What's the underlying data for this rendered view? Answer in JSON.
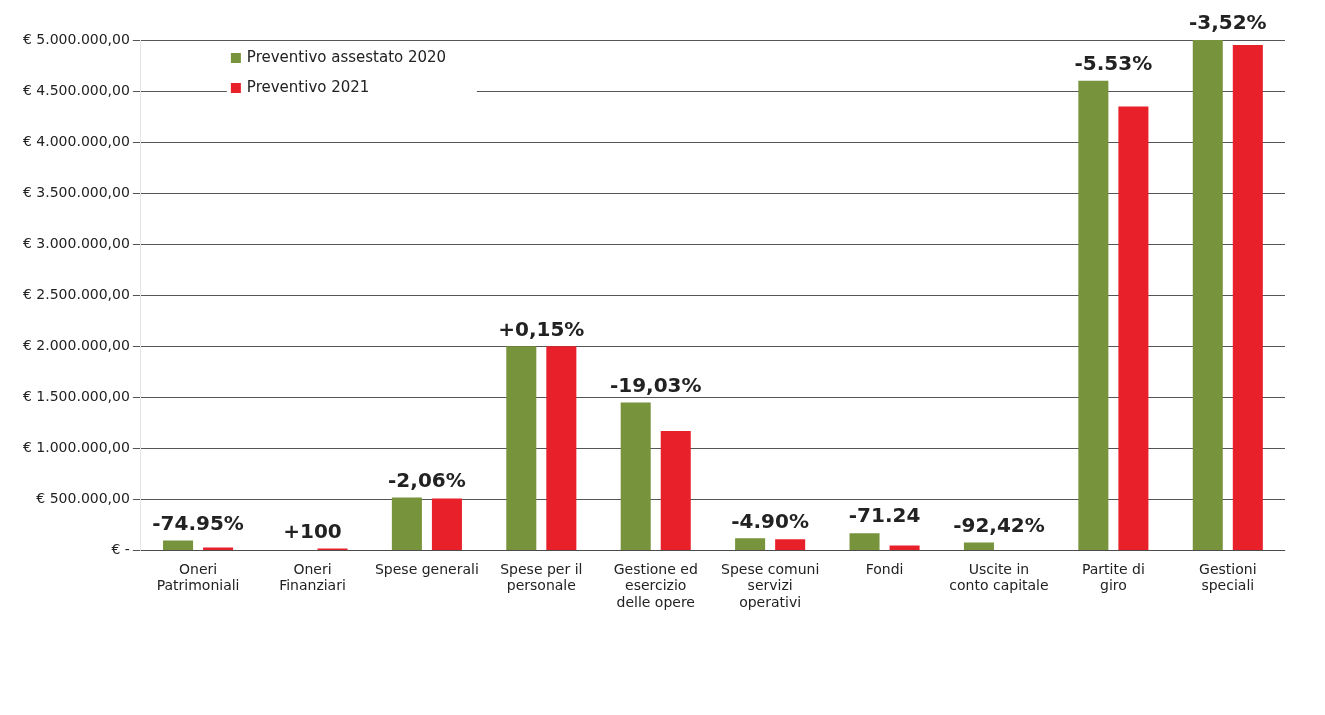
{
  "chart_data": {
    "type": "bar",
    "categories": [
      "Oneri Patrimoniali",
      "Oneri Finanziari",
      "Spese generali",
      "Spese per il personale",
      "Gestione ed esercizio delle opere",
      "Spese comuni servizi operativi",
      "Fondi",
      "Uscite in conto capitale",
      "Partite di giro",
      "Gestioni speciali"
    ],
    "series": [
      {
        "name": "Preventivo assestato 2020",
        "color": "#77933c",
        "values": [
          100000,
          null,
          520000,
          2000000,
          1450000,
          120000,
          170000,
          80000,
          4600000,
          5000000
        ]
      },
      {
        "name": "Preventivo 2021",
        "color": "#e8202a",
        "values": [
          30000,
          20000,
          510000,
          2000000,
          1170000,
          110000,
          50000,
          null,
          4350000,
          4950000
        ]
      }
    ],
    "ylim": [
      0,
      5000000
    ],
    "yticks": [
      {
        "value": 0,
        "label": "€ -"
      },
      {
        "value": 500000,
        "label": "€ 500.000,00"
      },
      {
        "value": 1000000,
        "label": "€ 1.000.000,00"
      },
      {
        "value": 1500000,
        "label": "€ 1.500.000,00"
      },
      {
        "value": 2000000,
        "label": "€ 2.000.000,00"
      },
      {
        "value": 2500000,
        "label": "€ 2.500.000,00"
      },
      {
        "value": 3000000,
        "label": "€ 3.000.000,00"
      },
      {
        "value": 3500000,
        "label": "€ 3.500.000,00"
      },
      {
        "value": 4000000,
        "label": "€ 4.000.000,00"
      },
      {
        "value": 4500000,
        "label": "€ 4.500.000,00"
      },
      {
        "value": 5000000,
        "label": "€ 5.000.000,00"
      }
    ],
    "grid": "y",
    "legend": "top left",
    "annotations": [
      "-74.95%",
      "+100",
      "-2,06%",
      "+0,15%",
      "-19,03%",
      "-4.90%",
      "-71.24",
      "-92,42%",
      "-5.53%",
      "-3,52%"
    ]
  }
}
